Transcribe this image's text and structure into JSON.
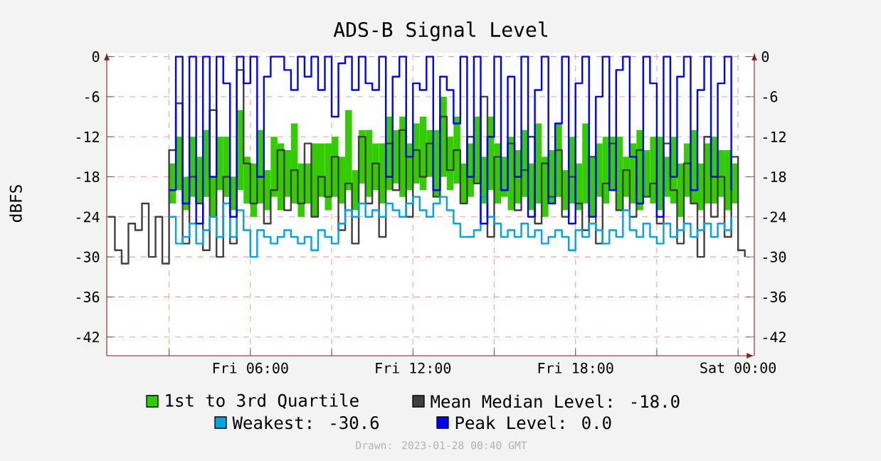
{
  "chart_data": {
    "type": "step",
    "title": "ADS-B Signal Level",
    "ylabel": "dBFS",
    "annotations": [
      "Drawn: 2023-01-28 00:40 GMT"
    ],
    "x": [
      "2023-01-27T00:45",
      "2023-01-27T01:00",
      "2023-01-27T01:15",
      "2023-01-27T01:30",
      "2023-01-27T01:45",
      "2023-01-27T02:00",
      "2023-01-27T02:15",
      "2023-01-27T02:30",
      "2023-01-27T02:45",
      "2023-01-27T03:00",
      "2023-01-27T03:15",
      "2023-01-27T03:30",
      "2023-01-27T03:45",
      "2023-01-27T04:00",
      "2023-01-27T04:15",
      "2023-01-27T04:30",
      "2023-01-27T04:45",
      "2023-01-27T05:00",
      "2023-01-27T05:15",
      "2023-01-27T05:30",
      "2023-01-27T05:45",
      "2023-01-27T06:00",
      "2023-01-27T06:15",
      "2023-01-27T06:30",
      "2023-01-27T06:45",
      "2023-01-27T07:00",
      "2023-01-27T07:15",
      "2023-01-27T07:30",
      "2023-01-27T07:45",
      "2023-01-27T08:00",
      "2023-01-27T08:15",
      "2023-01-27T08:30",
      "2023-01-27T08:45",
      "2023-01-27T09:00",
      "2023-01-27T09:15",
      "2023-01-27T09:30",
      "2023-01-27T09:45",
      "2023-01-27T10:00",
      "2023-01-27T10:15",
      "2023-01-27T10:30",
      "2023-01-27T10:45",
      "2023-01-27T11:00",
      "2023-01-27T11:15",
      "2023-01-27T11:30",
      "2023-01-27T11:45",
      "2023-01-27T12:00",
      "2023-01-27T12:15",
      "2023-01-27T12:30",
      "2023-01-27T12:45",
      "2023-01-27T13:00",
      "2023-01-27T13:15",
      "2023-01-27T13:30",
      "2023-01-27T13:45",
      "2023-01-27T14:00",
      "2023-01-27T14:15",
      "2023-01-27T14:30",
      "2023-01-27T14:45",
      "2023-01-27T15:00",
      "2023-01-27T15:15",
      "2023-01-27T15:30",
      "2023-01-27T15:45",
      "2023-01-27T16:00",
      "2023-01-27T16:15",
      "2023-01-27T16:30",
      "2023-01-27T16:45",
      "2023-01-27T17:00",
      "2023-01-27T17:15",
      "2023-01-27T17:30",
      "2023-01-27T17:45",
      "2023-01-27T18:00",
      "2023-01-27T18:15",
      "2023-01-27T18:30",
      "2023-01-27T18:45",
      "2023-01-27T19:00",
      "2023-01-27T19:15",
      "2023-01-27T19:30",
      "2023-01-27T19:45",
      "2023-01-27T20:00",
      "2023-01-27T20:15",
      "2023-01-27T20:30",
      "2023-01-27T20:45",
      "2023-01-27T21:00",
      "2023-01-27T21:15",
      "2023-01-27T21:30",
      "2023-01-27T21:45",
      "2023-01-27T22:00",
      "2023-01-27T22:15",
      "2023-01-27T22:30",
      "2023-01-27T22:45",
      "2023-01-27T23:00",
      "2023-01-27T23:15",
      "2023-01-27T23:30",
      "2023-01-27T23:45",
      "2023-01-28T00:00",
      "2023-01-28T00:15"
    ],
    "series": [
      {
        "name": "1st to 3rd Quartile",
        "type": "bar",
        "color": "#33cc00",
        "base": [
          null,
          null,
          null,
          null,
          null,
          null,
          null,
          null,
          null,
          -22,
          -20,
          -23,
          -21,
          -22,
          -21,
          -24,
          -20,
          -21,
          -23,
          -20,
          -22,
          -24,
          -22,
          -23,
          -21,
          -23,
          -21,
          -22,
          -24,
          -22,
          -24,
          -21,
          -23,
          -21,
          -22,
          -20,
          -23,
          -19,
          -21,
          -20,
          -22,
          -20,
          -19,
          -21,
          -20,
          -19,
          -20,
          -18,
          -21,
          -18,
          -20,
          -19,
          -22,
          -21,
          -19,
          -22,
          -20,
          -22,
          -21,
          -23,
          -22,
          -21,
          -23,
          -22,
          -24,
          -22,
          -21,
          -23,
          -22,
          -23,
          -22,
          -24,
          -21,
          -22,
          -20,
          -23,
          -21,
          -22,
          -23,
          -21,
          -22,
          -23,
          -21,
          -22,
          -24,
          -21,
          -22,
          -23,
          -22,
          -22,
          -21,
          -23,
          -22,
          null,
          null
        ],
        "values": [
          null,
          null,
          null,
          null,
          null,
          null,
          null,
          null,
          null,
          6,
          8,
          5,
          9,
          7,
          10,
          6,
          8,
          9,
          5,
          12,
          7,
          8,
          11,
          6,
          9,
          10,
          7,
          12,
          8,
          6,
          11,
          8,
          10,
          9,
          7,
          12,
          6,
          8,
          10,
          7,
          9,
          11,
          8,
          12,
          7,
          9,
          11,
          7,
          10,
          12,
          8,
          10,
          6,
          8,
          10,
          7,
          11,
          9,
          6,
          11,
          8,
          10,
          7,
          12,
          9,
          8,
          11,
          6,
          10,
          7,
          12,
          9,
          8,
          10,
          8,
          11,
          6,
          9,
          12,
          7,
          10,
          11,
          6,
          10,
          8,
          8,
          11,
          7,
          9,
          10,
          7,
          9,
          6,
          null,
          null
        ]
      },
      {
        "name": "Mean Median Level:   -18.0",
        "color": "#404040",
        "values": [
          -24,
          -29,
          -31,
          -25,
          -26,
          -22,
          -30,
          -24,
          -31,
          -14,
          -7,
          -28,
          -18,
          -22,
          -29,
          -8,
          -30,
          -18,
          -28,
          -2,
          -16,
          -22,
          -18,
          -25,
          -20,
          -14,
          -23,
          -17,
          -22,
          -13,
          -24,
          -18,
          -21,
          -15,
          -26,
          -19,
          -28,
          -12,
          -22,
          -16,
          -27,
          -13,
          -20,
          -11,
          -24,
          -14,
          -18,
          -13,
          -21,
          -9,
          -17,
          -14,
          -22,
          -12,
          -19,
          -6,
          -27,
          -15,
          -20,
          -13,
          -23,
          -17,
          -12,
          -25,
          -16,
          -21,
          -14,
          -24,
          -18,
          -22,
          -26,
          -15,
          -28,
          -19,
          -13,
          -23,
          -17,
          -24,
          -14,
          -21,
          -19,
          -25,
          -13,
          -20,
          -28,
          -16,
          -22,
          -30,
          -12,
          -24,
          -18,
          -27,
          -15,
          -29,
          -30
        ]
      },
      {
        "name": "Weakest:  -30.6",
        "color": "#00a2e8",
        "values": [
          null,
          null,
          null,
          null,
          null,
          null,
          null,
          null,
          null,
          -24,
          -28,
          -27,
          -25,
          -28,
          -26,
          -24,
          -27,
          -22,
          -27,
          -23,
          -26,
          -30,
          -26,
          -27,
          -28,
          -27,
          -26,
          -27,
          -28,
          -27,
          -29,
          -26,
          -27,
          -28,
          -25,
          -23,
          -24,
          -22,
          -24,
          -23,
          -24,
          -22,
          -23,
          -24,
          -22,
          -21,
          -23,
          -24,
          -22,
          -21,
          -23,
          -25,
          -27,
          -27,
          -26,
          -21,
          -24,
          -25,
          -27,
          -26,
          -27,
          -25,
          -27,
          -26,
          -28,
          -27,
          -26,
          -27,
          -29,
          -26,
          -27,
          -25,
          -26,
          -28,
          -26,
          -27,
          -23,
          -26,
          -27,
          -25,
          -27,
          -28,
          -25,
          -27,
          -26,
          -25,
          -27,
          -26,
          -25,
          -27,
          -25,
          -26,
          -24,
          null,
          null
        ]
      },
      {
        "name": "Peak Level:    0.0",
        "color": "#0000ff",
        "values": [
          null,
          null,
          null,
          null,
          null,
          null,
          null,
          null,
          null,
          -20,
          0,
          -22,
          0,
          -25,
          0,
          -18,
          0,
          -4,
          -24,
          0,
          -4,
          0,
          -18,
          -3,
          0,
          0,
          -2,
          -5,
          0,
          -3,
          0,
          -5,
          0,
          -9,
          -1,
          0,
          -5,
          0,
          -4,
          -5,
          0,
          -18,
          -3,
          0,
          -15,
          -4,
          -5,
          0,
          -20,
          -3,
          -5,
          -10,
          0,
          -18,
          0,
          -25,
          -12,
          0,
          -20,
          -3,
          -18,
          0,
          -24,
          -5,
          0,
          -22,
          -10,
          0,
          -25,
          -4,
          0,
          -24,
          -6,
          0,
          -20,
          -2,
          0,
          -15,
          -22,
          0,
          -4,
          -24,
          0,
          -18,
          -3,
          0,
          -20,
          -5,
          0,
          -18,
          -4,
          0,
          -20,
          null,
          null
        ]
      }
    ],
    "xlim": [
      "2023-01-27T00:42",
      "2023-01-28T00:36"
    ],
    "ylim": [
      -44.8,
      0.6
    ],
    "xticks": [
      {
        "value": "2023-01-27T03:00",
        "label": null
      },
      {
        "value": "2023-01-27T06:00",
        "label": "Fri 06:00"
      },
      {
        "value": "2023-01-27T09:00",
        "label": null
      },
      {
        "value": "2023-01-27T12:00",
        "label": "Fri 12:00"
      },
      {
        "value": "2023-01-27T15:00",
        "label": null
      },
      {
        "value": "2023-01-27T18:00",
        "label": "Fri 18:00"
      },
      {
        "value": "2023-01-27T21:00",
        "label": null
      },
      {
        "value": "2023-01-28T00:00",
        "label": "Sat 00:00"
      }
    ],
    "yticks": [
      -42,
      -36,
      -30,
      -24,
      -18,
      -12,
      -6,
      0
    ],
    "y2lim": [
      -44.8,
      0.6
    ],
    "y2ticks": [
      -42,
      -36,
      -30,
      -24,
      -18,
      -12,
      -6,
      0
    ],
    "grid": true,
    "legend": "bottom"
  }
}
